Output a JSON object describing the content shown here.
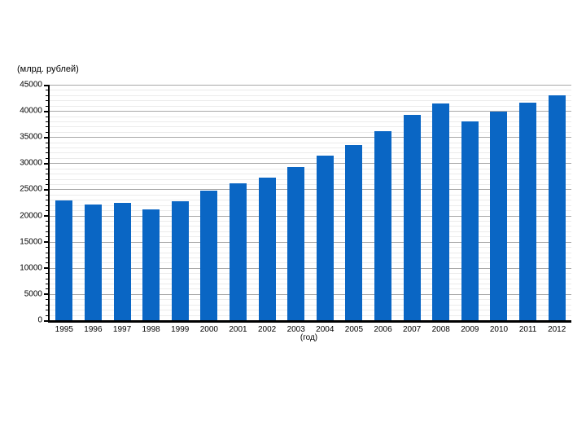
{
  "page": {
    "background": "#ffffff"
  },
  "chart_data": {
    "type": "bar",
    "title": "",
    "ylabel": "(млрд. рублей)",
    "xlabel": "(год)",
    "categories": [
      "1995",
      "1996",
      "1997",
      "1998",
      "1999",
      "2000",
      "2001",
      "2002",
      "2003",
      "2004",
      "2005",
      "2006",
      "2007",
      "2008",
      "2009",
      "2010",
      "2011",
      "2012"
    ],
    "values": [
      22900,
      22100,
      22500,
      21200,
      22700,
      24800,
      26100,
      27300,
      29300,
      31500,
      33500,
      36100,
      39300,
      41400,
      38000,
      39900,
      41600,
      43000
    ],
    "ylim": [
      0,
      45000
    ],
    "y_major_step": 5000,
    "y_minor_step": 1000,
    "y_tick_labels": [
      "0",
      "5000",
      "10000",
      "15000",
      "20000",
      "25000",
      "30000",
      "35000",
      "40000",
      "45000"
    ],
    "grid": "horizontal-only",
    "legend": "none",
    "colors": {
      "bar": "#0a66c4",
      "axis": "#000000",
      "major_grid": "#a8a8a8",
      "minor_grid": "#ebebeb",
      "text": "#000000"
    }
  }
}
